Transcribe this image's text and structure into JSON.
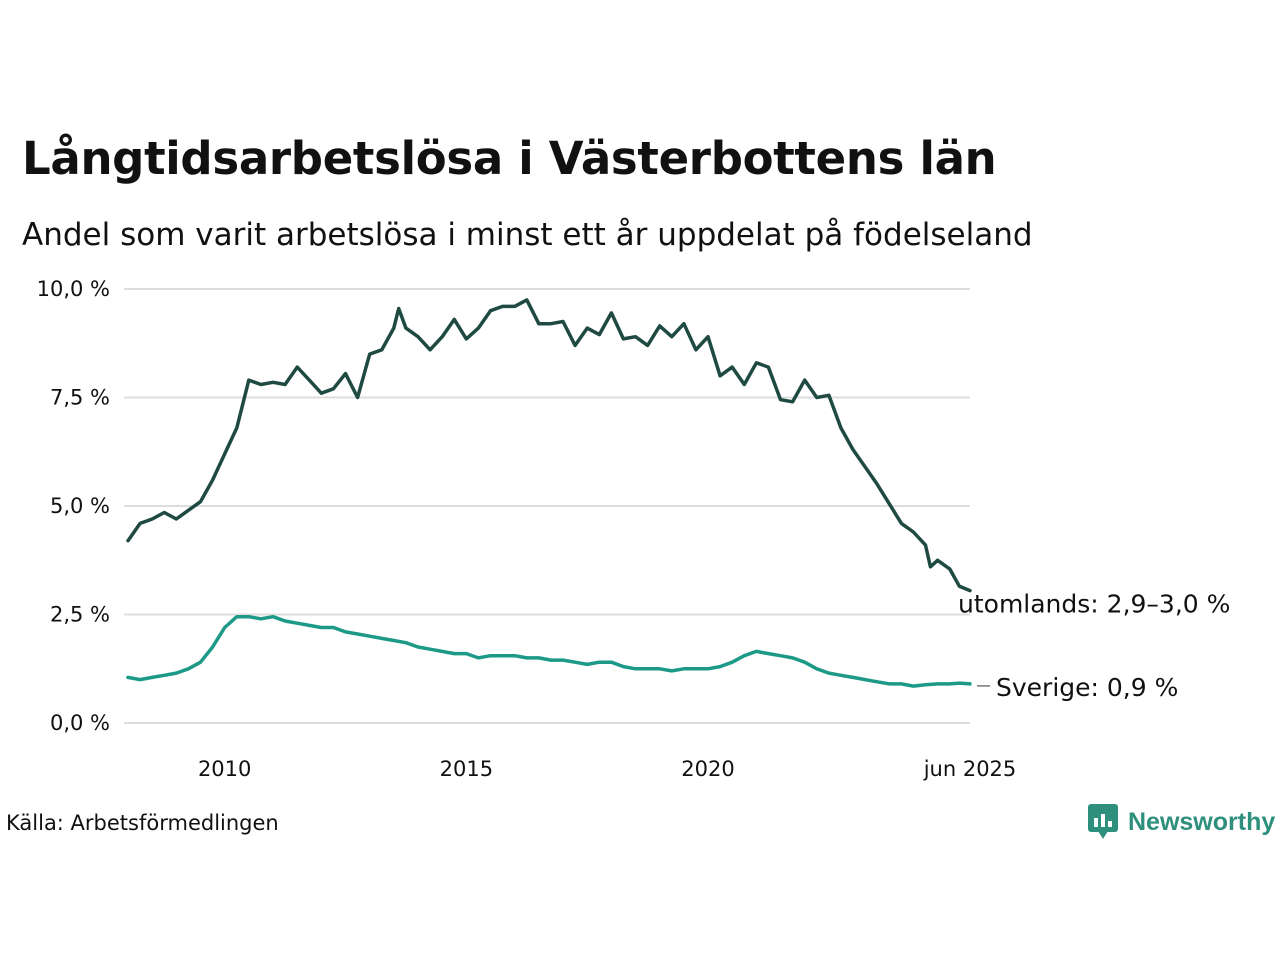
{
  "title": "Långtidsarbetslösa i Västerbottens län",
  "subtitle": "Andel som varit arbetslösa i minst ett år uppdelat på födelseland",
  "source": "Källa: Arbetsförmedlingen",
  "brand": {
    "name": "Newsworthy",
    "icon": "newsworthy-logo-icon",
    "color": "#2f8f7d"
  },
  "chart_data": {
    "type": "line",
    "ylim": [
      0,
      10
    ],
    "xlim": [
      2008.0,
      2025.42
    ],
    "y_ticks": [
      {
        "value": 0,
        "label": "0,0 %"
      },
      {
        "value": 2.5,
        "label": "2,5 %"
      },
      {
        "value": 5,
        "label": "5,0 %"
      },
      {
        "value": 7.5,
        "label": "7,5 %"
      },
      {
        "value": 10,
        "label": "10,0 %"
      }
    ],
    "x_ticks": [
      {
        "value": 2010,
        "label": "2010"
      },
      {
        "value": 2015,
        "label": "2015"
      },
      {
        "value": 2020,
        "label": "2020"
      },
      {
        "value": 2025.42,
        "label": "jun 2025"
      }
    ],
    "grid": true,
    "series": [
      {
        "name": "utomlands",
        "end_label": "utomlands: 2,9–3,0 %",
        "color": "#1f4a42",
        "points": [
          [
            2008.0,
            4.2
          ],
          [
            2008.25,
            4.6
          ],
          [
            2008.5,
            4.7
          ],
          [
            2008.75,
            4.85
          ],
          [
            2009.0,
            4.7
          ],
          [
            2009.25,
            4.9
          ],
          [
            2009.5,
            5.1
          ],
          [
            2009.75,
            5.6
          ],
          [
            2010.0,
            6.2
          ],
          [
            2010.25,
            6.8
          ],
          [
            2010.5,
            7.9
          ],
          [
            2010.75,
            7.8
          ],
          [
            2011.0,
            7.85
          ],
          [
            2011.25,
            7.8
          ],
          [
            2011.5,
            8.2
          ],
          [
            2011.75,
            7.9
          ],
          [
            2012.0,
            7.6
          ],
          [
            2012.25,
            7.7
          ],
          [
            2012.5,
            8.05
          ],
          [
            2012.75,
            7.5
          ],
          [
            2013.0,
            8.5
          ],
          [
            2013.25,
            8.6
          ],
          [
            2013.5,
            9.1
          ],
          [
            2013.6,
            9.55
          ],
          [
            2013.75,
            9.1
          ],
          [
            2014.0,
            8.9
          ],
          [
            2014.25,
            8.6
          ],
          [
            2014.5,
            8.9
          ],
          [
            2014.75,
            9.3
          ],
          [
            2015.0,
            8.85
          ],
          [
            2015.25,
            9.1
          ],
          [
            2015.5,
            9.5
          ],
          [
            2015.75,
            9.6
          ],
          [
            2016.0,
            9.6
          ],
          [
            2016.25,
            9.75
          ],
          [
            2016.5,
            9.2
          ],
          [
            2016.75,
            9.2
          ],
          [
            2017.0,
            9.25
          ],
          [
            2017.25,
            8.7
          ],
          [
            2017.5,
            9.1
          ],
          [
            2017.75,
            8.95
          ],
          [
            2018.0,
            9.45
          ],
          [
            2018.25,
            8.85
          ],
          [
            2018.5,
            8.9
          ],
          [
            2018.75,
            8.7
          ],
          [
            2019.0,
            9.15
          ],
          [
            2019.25,
            8.9
          ],
          [
            2019.5,
            9.2
          ],
          [
            2019.75,
            8.6
          ],
          [
            2020.0,
            8.9
          ],
          [
            2020.25,
            8.0
          ],
          [
            2020.5,
            8.2
          ],
          [
            2020.75,
            7.8
          ],
          [
            2021.0,
            8.3
          ],
          [
            2021.25,
            8.2
          ],
          [
            2021.5,
            7.45
          ],
          [
            2021.75,
            7.4
          ],
          [
            2022.0,
            7.9
          ],
          [
            2022.25,
            7.5
          ],
          [
            2022.5,
            7.55
          ],
          [
            2022.75,
            6.8
          ],
          [
            2023.0,
            6.3
          ],
          [
            2023.25,
            5.9
          ],
          [
            2023.5,
            5.5
          ],
          [
            2023.75,
            5.05
          ],
          [
            2024.0,
            4.6
          ],
          [
            2024.25,
            4.4
          ],
          [
            2024.5,
            4.1
          ],
          [
            2024.6,
            3.6
          ],
          [
            2024.75,
            3.75
          ],
          [
            2025.0,
            3.55
          ],
          [
            2025.2,
            3.15
          ],
          [
            2025.42,
            3.05
          ]
        ]
      },
      {
        "name": "Sverige",
        "end_label": "Sverige: 0,9 %",
        "color": "#1d9a87",
        "points": [
          [
            2008.0,
            1.05
          ],
          [
            2008.25,
            1.0
          ],
          [
            2008.5,
            1.05
          ],
          [
            2008.75,
            1.1
          ],
          [
            2009.0,
            1.15
          ],
          [
            2009.25,
            1.25
          ],
          [
            2009.5,
            1.4
          ],
          [
            2009.75,
            1.75
          ],
          [
            2010.0,
            2.2
          ],
          [
            2010.25,
            2.45
          ],
          [
            2010.5,
            2.45
          ],
          [
            2010.75,
            2.4
          ],
          [
            2011.0,
            2.45
          ],
          [
            2011.25,
            2.35
          ],
          [
            2011.5,
            2.3
          ],
          [
            2011.75,
            2.25
          ],
          [
            2012.0,
            2.2
          ],
          [
            2012.25,
            2.2
          ],
          [
            2012.5,
            2.1
          ],
          [
            2012.75,
            2.05
          ],
          [
            2013.0,
            2.0
          ],
          [
            2013.25,
            1.95
          ],
          [
            2013.5,
            1.9
          ],
          [
            2013.75,
            1.85
          ],
          [
            2014.0,
            1.75
          ],
          [
            2014.25,
            1.7
          ],
          [
            2014.5,
            1.65
          ],
          [
            2014.75,
            1.6
          ],
          [
            2015.0,
            1.6
          ],
          [
            2015.25,
            1.5
          ],
          [
            2015.5,
            1.55
          ],
          [
            2015.75,
            1.55
          ],
          [
            2016.0,
            1.55
          ],
          [
            2016.25,
            1.5
          ],
          [
            2016.5,
            1.5
          ],
          [
            2016.75,
            1.45
          ],
          [
            2017.0,
            1.45
          ],
          [
            2017.25,
            1.4
          ],
          [
            2017.5,
            1.35
          ],
          [
            2017.75,
            1.4
          ],
          [
            2018.0,
            1.4
          ],
          [
            2018.25,
            1.3
          ],
          [
            2018.5,
            1.25
          ],
          [
            2018.75,
            1.25
          ],
          [
            2019.0,
            1.25
          ],
          [
            2019.25,
            1.2
          ],
          [
            2019.5,
            1.25
          ],
          [
            2019.75,
            1.25
          ],
          [
            2020.0,
            1.25
          ],
          [
            2020.25,
            1.3
          ],
          [
            2020.5,
            1.4
          ],
          [
            2020.75,
            1.55
          ],
          [
            2021.0,
            1.65
          ],
          [
            2021.25,
            1.6
          ],
          [
            2021.5,
            1.55
          ],
          [
            2021.75,
            1.5
          ],
          [
            2022.0,
            1.4
          ],
          [
            2022.25,
            1.25
          ],
          [
            2022.5,
            1.15
          ],
          [
            2022.75,
            1.1
          ],
          [
            2023.0,
            1.05
          ],
          [
            2023.25,
            1.0
          ],
          [
            2023.5,
            0.95
          ],
          [
            2023.75,
            0.9
          ],
          [
            2024.0,
            0.9
          ],
          [
            2024.25,
            0.85
          ],
          [
            2024.5,
            0.88
          ],
          [
            2024.75,
            0.9
          ],
          [
            2025.0,
            0.9
          ],
          [
            2025.2,
            0.92
          ],
          [
            2025.42,
            0.9
          ]
        ]
      }
    ]
  }
}
